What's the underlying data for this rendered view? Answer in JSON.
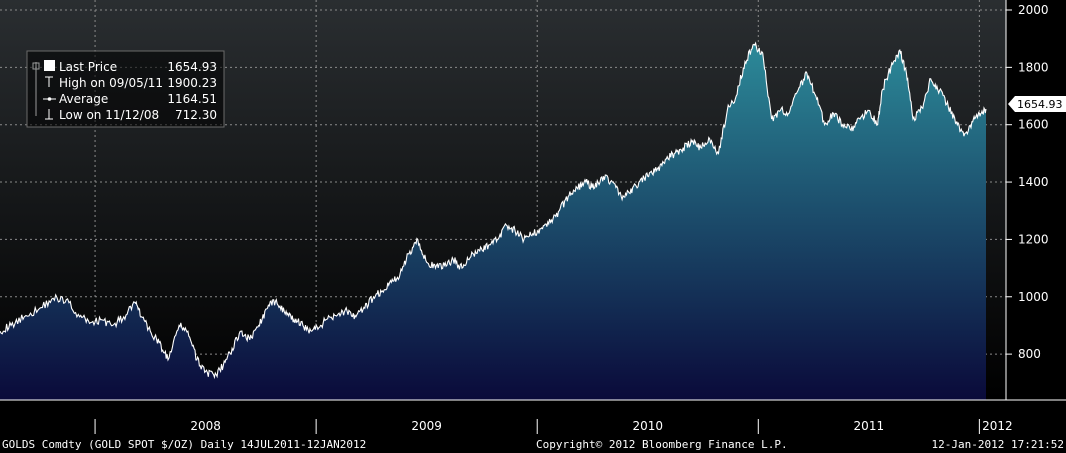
{
  "colors": {
    "background_top": "#2a2e31",
    "background_bottom": "#000000",
    "area_top": "#2c8a99",
    "area_bottom": "#0a0a3a",
    "line": "#ffffff",
    "grid": "#8a8a8a"
  },
  "legend": {
    "items": [
      {
        "label": "Last Price",
        "value": "1654.93",
        "icon": "filled-square-icon"
      },
      {
        "label": "High on 09/05/11",
        "value": "1900.23",
        "icon": "high-marker-icon"
      },
      {
        "label": "Average",
        "value": "1164.51",
        "icon": "average-marker-icon"
      },
      {
        "label": "Low on 11/12/08",
        "value": "712.30",
        "icon": "low-marker-icon"
      }
    ]
  },
  "last_price_tag": "1654.93",
  "footer": {
    "left": "GOLDS Comdty (GOLD SPOT $/OZ)  Daily 14JUL2011-12JAN2012",
    "center": "Copyright© 2012 Bloomberg Finance L.P.",
    "right": "12-Jan-2012 17:21:52"
  },
  "chart_data": {
    "type": "area",
    "title": "",
    "xlabel": "",
    "ylabel": "",
    "ylim": [
      640,
      2000
    ],
    "y_ticks": [
      800,
      1000,
      1200,
      1400,
      1600,
      1800,
      2000
    ],
    "x_range": [
      2007.57,
      2012.03
    ],
    "year_labels": [
      "2008",
      "2009",
      "2010",
      "2011",
      "2012"
    ],
    "grid": true,
    "legend_position": "top-left",
    "series": [
      {
        "x": [
          2007.57,
          2007.62,
          2007.68,
          2007.75,
          2007.81,
          2007.87,
          2007.93,
          2007.98,
          2008.03,
          2008.08,
          2008.13,
          2008.18,
          2008.21,
          2008.25,
          2008.29,
          2008.33,
          2008.38,
          2008.42,
          2008.46,
          2008.5,
          2008.54,
          2008.58,
          2008.62,
          2008.66,
          2008.7,
          2008.74,
          2008.78,
          2008.82,
          2008.86,
          2008.9,
          2008.94,
          2008.98,
          2009.02,
          2009.06,
          2009.1,
          2009.14,
          2009.18,
          2009.22,
          2009.26,
          2009.3,
          2009.34,
          2009.38,
          2009.42,
          2009.46,
          2009.5,
          2009.54,
          2009.58,
          2009.62,
          2009.66,
          2009.7,
          2009.74,
          2009.78,
          2009.82,
          2009.86,
          2009.9,
          2009.94,
          2009.98,
          2010.02,
          2010.06,
          2010.1,
          2010.14,
          2010.18,
          2010.22,
          2010.26,
          2010.3,
          2010.34,
          2010.38,
          2010.42,
          2010.46,
          2010.5,
          2010.54,
          2010.58,
          2010.62,
          2010.66,
          2010.7,
          2010.74,
          2010.78,
          2010.82,
          2010.86,
          2010.9,
          2010.94,
          2010.98,
          2011.02,
          2011.06,
          2011.1,
          2011.14,
          2011.18,
          2011.22,
          2011.26,
          2011.3,
          2011.34,
          2011.38,
          2011.42,
          2011.46,
          2011.5,
          2011.54,
          2011.56,
          2011.6,
          2011.64,
          2011.67,
          2011.7,
          2011.74,
          2011.78,
          2011.82,
          2011.86,
          2011.9,
          2011.93,
          2011.97,
          2012.0,
          2012.03
        ],
        "values": [
          880,
          900,
          930,
          960,
          995,
          990,
          930,
          910,
          920,
          900,
          930,
          980,
          930,
          880,
          840,
          780,
          900,
          880,
          780,
          740,
          720,
          760,
          820,
          880,
          850,
          900,
          960,
          990,
          940,
          920,
          900,
          880,
          900,
          930,
          940,
          950,
          930,
          960,
          1000,
          1020,
          1050,
          1080,
          1150,
          1200,
          1120,
          1100,
          1110,
          1130,
          1100,
          1140,
          1160,
          1180,
          1200,
          1250,
          1230,
          1200,
          1220,
          1240,
          1260,
          1300,
          1350,
          1380,
          1400,
          1380,
          1420,
          1400,
          1350,
          1360,
          1400,
          1420,
          1440,
          1480,
          1500,
          1520,
          1540,
          1520,
          1550,
          1500,
          1650,
          1700,
          1820,
          1880,
          1850,
          1620,
          1650,
          1640,
          1720,
          1780,
          1700,
          1600,
          1640,
          1600,
          1580,
          1620,
          1650,
          1600,
          1720,
          1800,
          1860,
          1780,
          1620,
          1660,
          1760,
          1720,
          1660,
          1600,
          1560,
          1610,
          1640,
          1654.93
        ]
      }
    ],
    "annotations": {
      "high": {
        "date": "09/05/11",
        "value": 1900.23
      },
      "low": {
        "date": "11/12/08",
        "value": 712.3
      },
      "average": 1164.51,
      "last": 1654.93
    }
  }
}
